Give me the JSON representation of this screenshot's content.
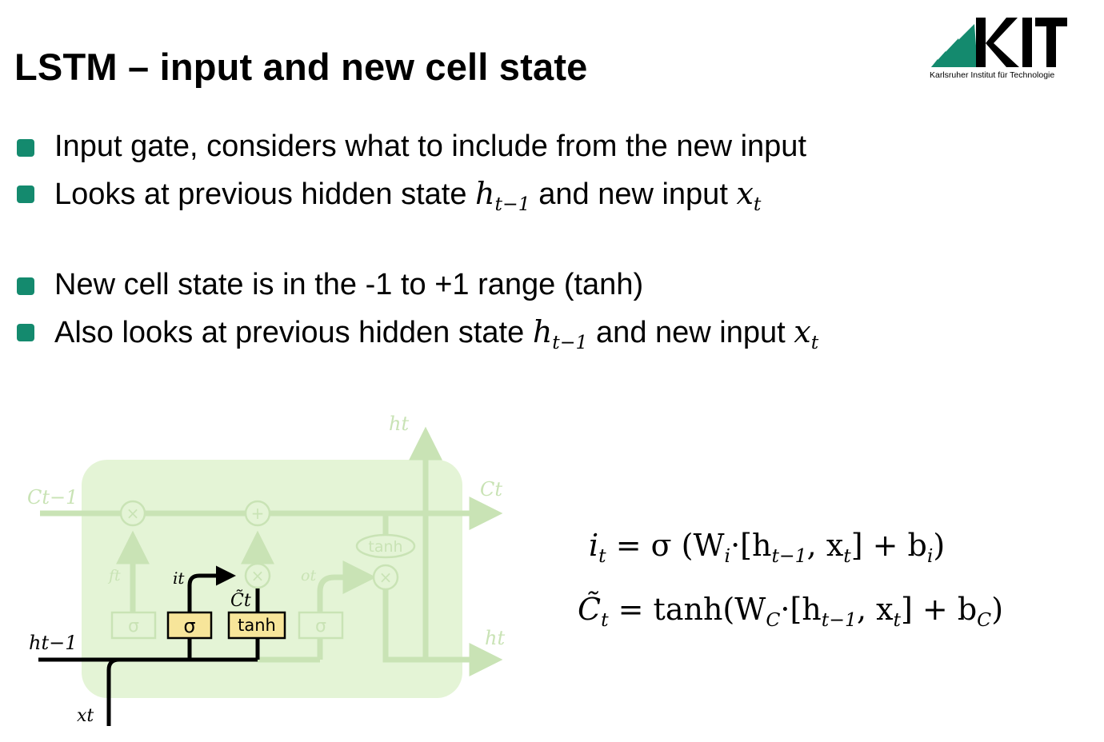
{
  "title": "LSTM – input and new cell state",
  "logo": {
    "name": "KIT",
    "subtitle": "Karlsruher Institut für Technologie",
    "brand_color": "#148a6e"
  },
  "bullets": [
    {
      "text": "Input gate, considers what to include from the new input"
    },
    {
      "prefix": "Looks at previous hidden state",
      "var1": "h",
      "sub1": "t−1",
      "mid": "and new input",
      "var2": "x",
      "sub2": "t"
    },
    {
      "text": "New cell state is in the -1 to +1 range (tanh)"
    },
    {
      "prefix": "Also looks at previous hidden state",
      "var1": "h",
      "sub1": "t−1",
      "mid": "and new input",
      "var2": "x",
      "sub2": "t"
    }
  ],
  "diagram": {
    "labels": {
      "c_prev": "Ct−1",
      "c_out": "Ct",
      "h_top": "ht",
      "h_right": "ht",
      "h_prev": "ht−1",
      "x_in": "xt",
      "f_gate": "ft",
      "i_gate": "it",
      "o_gate": "ot",
      "c_tilde": "C̃t"
    },
    "ops": {
      "sigma": "σ",
      "tanh": "tanh",
      "times": "×",
      "plus": "+"
    },
    "colors": {
      "cell_bg": "#e4f4d6",
      "faded": "#c9e3b5",
      "active_box": "#f7e59a",
      "stroke": "#000000"
    }
  },
  "equations": [
    {
      "lhs": "i",
      "lhs_sub": "t",
      "body": "= σ (W",
      "w_sub": "i",
      "mid": "·[h",
      "h_sub": "t−1",
      "comma": ", x",
      "x_sub": "t",
      "rest": "] + b",
      "b_sub": "i",
      "end": ")"
    },
    {
      "lhs": "C̃",
      "lhs_sub": "t",
      "body": "= tanh(W",
      "w_sub": "C",
      "mid": "·[h",
      "h_sub": "t−1",
      "comma": ", x",
      "x_sub": "t",
      "rest": "] + b",
      "b_sub": "C",
      "end": ")"
    }
  ]
}
